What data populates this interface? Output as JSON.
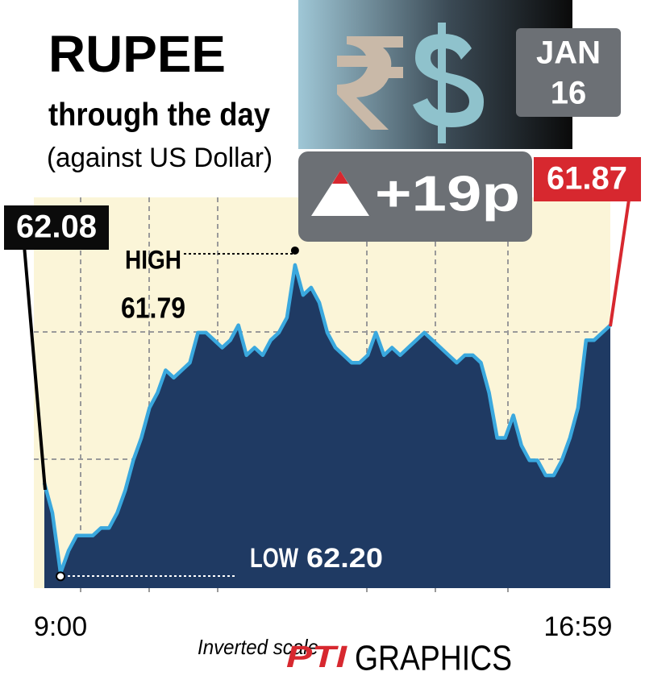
{
  "chart_data": {
    "type": "area",
    "title": "RUPEE",
    "subtitle": "through the day",
    "subtitle2": "(against US Dollar)",
    "date_month": "JAN",
    "date_day": "16",
    "change": "+19p",
    "open": 62.08,
    "close": 61.87,
    "high": {
      "label": "HIGH",
      "value": 61.79
    },
    "low": {
      "label": "LOW",
      "value": 62.2,
      "value_label": "62.20"
    },
    "note": "Inverted scale",
    "source_logo": "PTI",
    "source": "GRAPHICS",
    "categories": [
      null,
      null,
      "9:00",
      null,
      null,
      null,
      null,
      null,
      null,
      null,
      null,
      null,
      null,
      null,
      null,
      null,
      null,
      null,
      null,
      null,
      null,
      null,
      null,
      null,
      null,
      null,
      null,
      null,
      null,
      null,
      null,
      null,
      null,
      null,
      null,
      null,
      null,
      null,
      null,
      null,
      null,
      null,
      null,
      null,
      null,
      null,
      null,
      null,
      null,
      null,
      null,
      null,
      null,
      null,
      null,
      null,
      null,
      null,
      null,
      null,
      null,
      null,
      null,
      null,
      null,
      null,
      "16:59",
      null,
      null,
      null,
      null
    ],
    "series": [
      {
        "color": "#3aa8de",
        "fill": "#1f3a63",
        "values": [
          62.08,
          62.12,
          62.2,
          62.17,
          62.15,
          62.15,
          62.15,
          62.14,
          62.14,
          62.12,
          62.09,
          62.05,
          62.02,
          61.98,
          61.96,
          61.93,
          61.94,
          61.93,
          61.92,
          61.88,
          61.88,
          61.89,
          61.9,
          61.89,
          61.87,
          61.91,
          61.9,
          61.91,
          61.89,
          61.88,
          61.86,
          61.79,
          61.83,
          61.82,
          61.84,
          61.88,
          61.9,
          61.91,
          61.92,
          61.92,
          61.91,
          61.88,
          61.91,
          61.9,
          61.91,
          61.9,
          61.89,
          61.88,
          61.89,
          61.9,
          61.91,
          61.92,
          61.91,
          61.91,
          61.92,
          61.96,
          62.02,
          62.02,
          61.99,
          62.03,
          62.05,
          62.05,
          62.07,
          62.07,
          62.05,
          62.02,
          61.98,
          61.89,
          61.89,
          61.88,
          61.87
        ]
      }
    ],
    "ylim": [
      62.22,
      61.7
    ],
    "inverted": true,
    "grid": true
  }
}
